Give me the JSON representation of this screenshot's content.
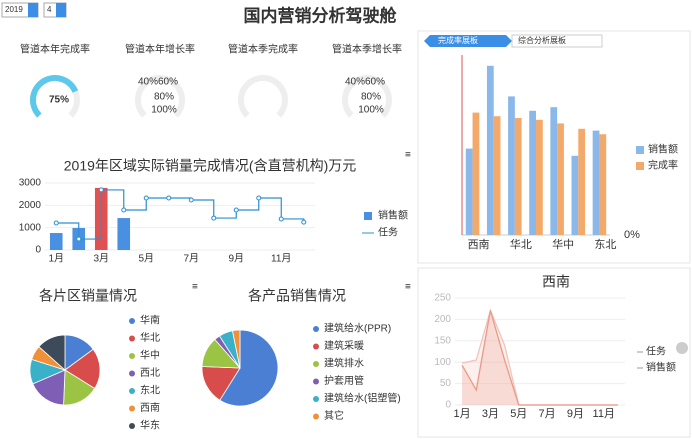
{
  "header": {
    "title": "国内营销分析驾驶舱",
    "year": "2019",
    "month": "4"
  },
  "tabs": [
    "完成率展板",
    "综合分析展板"
  ],
  "gauges": [
    {
      "title": "管道本年完成率",
      "value": 75,
      "value_label": "75%"
    },
    {
      "title": "管道本年增长率",
      "ticks": [
        "40%",
        "60%",
        "80%",
        "100%"
      ]
    },
    {
      "title": "管道本季完成率"
    },
    {
      "title": "管道本季增长率",
      "ticks": [
        "40%",
        "60%",
        "80%",
        "100%"
      ]
    }
  ],
  "chart_data": [
    {
      "type": "combo",
      "title": "2019年区域实际销量完成情况(含直营机构)万元",
      "categories": [
        "1月",
        null,
        "3月",
        null,
        "5月",
        null,
        "7月",
        null,
        "9月",
        null,
        "11月",
        null
      ],
      "series": [
        {
          "name": "销售额",
          "kind": "bar",
          "color": "#4a90e2",
          "highlight": {
            "index": 2,
            "color": "#e05252"
          },
          "values": [
            760,
            985,
            2780,
            1430,
            0,
            0,
            0,
            0,
            0,
            0,
            0,
            0
          ]
        },
        {
          "name": "任务",
          "kind": "step",
          "color": "#2a8fd0",
          "values": [
            1210,
            490,
            2690,
            1790,
            2330,
            2330,
            2240,
            1430,
            1790,
            2330,
            1390,
            1250
          ]
        }
      ],
      "ylim": [
        0,
        3000
      ],
      "yticks": [
        0,
        1000,
        2000,
        3000
      ]
    },
    {
      "type": "pie",
      "title": "各片区销量情况",
      "categories": [
        "华南",
        "华北",
        "华中",
        "西北",
        "东北",
        "西南",
        "华东"
      ],
      "values": [
        400,
        508,
        450,
        479,
        305,
        180,
        359
      ],
      "colors": [
        "#4a7fd4",
        "#d94c4c",
        "#9bc444",
        "#7e5fb5",
        "#3bb0c9",
        "#f0913a",
        "#3c4a5a"
      ]
    },
    {
      "type": "pie",
      "title": "各产品销售情况",
      "categories": [
        "建筑给水(PPR)",
        "建筑采暖",
        "建筑排水",
        "护套用管",
        "建筑给水(铝塑管)",
        "其它"
      ],
      "values": [
        1117,
        317,
        244,
        46,
        112,
        60
      ],
      "colors": [
        "#4a7fd4",
        "#d94c4c",
        "#9bc444",
        "#7e5fb5",
        "#3bb0c9",
        "#f0913a"
      ]
    },
    {
      "type": "groupedbar",
      "categories": [
        "西南",
        null,
        "华北",
        null,
        "华中",
        null,
        "东北"
      ],
      "series": [
        {
          "name": "销售额",
          "color": "#8ab8ea",
          "values": [
            48,
            94,
            77,
            69,
            71,
            44,
            58
          ]
        },
        {
          "name": "完成率",
          "color": "#f3a96a",
          "values": [
            68,
            66,
            65,
            64,
            62,
            59,
            56
          ]
        }
      ],
      "ylim": [
        0,
        100
      ],
      "y2lim": [
        0,
        100
      ],
      "y2ticks": [
        {
          "value": 0,
          "label": "0%"
        }
      ]
    },
    {
      "type": "area",
      "title": "西南",
      "categories": [
        "1月",
        null,
        "3月",
        null,
        "5月",
        null,
        "7月",
        null,
        "9月",
        null,
        "11月",
        null
      ],
      "series": [
        {
          "name": "任务",
          "color": "#f2c4bc",
          "values": [
            98,
            105,
            221,
            140,
            0,
            0,
            0,
            0,
            0,
            0,
            0,
            0
          ]
        },
        {
          "name": "销售额",
          "color": "#e99a88",
          "values": [
            93,
            35,
            221,
            105,
            0,
            0,
            0,
            0,
            0,
            0,
            0,
            0
          ]
        }
      ],
      "ylim": [
        0,
        250
      ],
      "yticks": [
        0,
        50,
        100,
        150,
        200,
        250
      ]
    }
  ]
}
